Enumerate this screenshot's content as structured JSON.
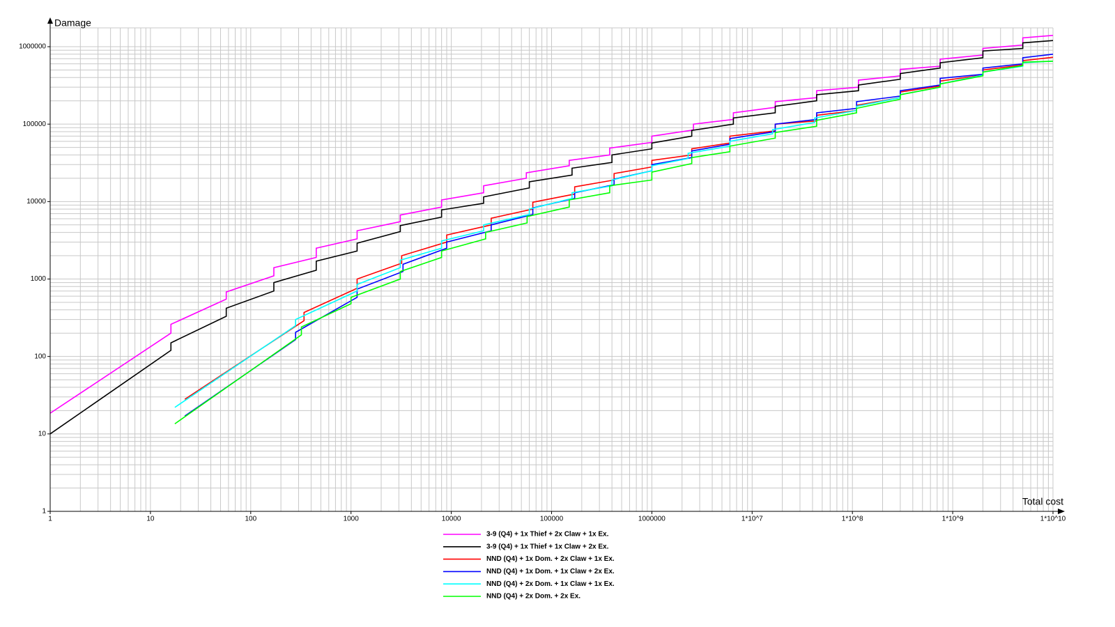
{
  "chart_data": {
    "type": "line",
    "x_label": "Total cost",
    "y_label": "Damage",
    "log_x": true,
    "log_y": true,
    "grid": true,
    "legend": "bottom",
    "xlim": [
      1,
      10000000000
    ],
    "ylim": [
      1,
      1750000
    ],
    "xticks": [
      1,
      10,
      100,
      1000,
      10000,
      100000,
      1000000,
      {
        "value": 10000000,
        "label": "1*10^7"
      },
      {
        "value": 100000000,
        "label": "1*10^8"
      },
      {
        "value": 1000000000,
        "label": "1*10^9"
      },
      {
        "value": 10000000000,
        "label": "1*10^10"
      }
    ],
    "yticks": [
      1,
      10,
      100,
      1000,
      10000,
      100000,
      1000000
    ],
    "series": [
      {
        "name": "3-9 (Q4) + 1x Thief + 2x Claw + 1x Ex.",
        "color": "#ff00ff",
        "x": [
          1,
          16,
          16,
          57,
          57,
          170,
          170,
          450,
          450,
          1150,
          1150,
          3100,
          3100,
          8000,
          8000,
          21000,
          21000,
          56000,
          56000,
          150000,
          150000,
          380000,
          380000,
          1000000,
          1000000,
          2600000,
          2600000,
          6500000,
          6500000,
          17000000,
          17000000,
          44000000,
          44000000,
          115000000,
          115000000,
          300000000,
          300000000,
          750000000,
          750000000,
          2000000000,
          2000000000,
          5000000000,
          5000000000,
          10000000000
        ],
        "values": [
          18.5,
          200,
          260,
          550,
          680,
          1100,
          1400,
          1900,
          2500,
          3300,
          4200,
          5500,
          6700,
          8500,
          10500,
          13000,
          16000,
          20000,
          23500,
          29000,
          34000,
          40000,
          49000,
          58000,
          70000,
          84000,
          100000,
          115000,
          140000,
          165000,
          195000,
          220000,
          270000,
          300000,
          370000,
          420000,
          510000,
          560000,
          690000,
          780000,
          950000,
          1050000,
          1300000,
          1400000
        ]
      },
      {
        "name": "3-9 (Q4) + 1x Thief + 1x Claw + 2x Ex.",
        "color": "#000000",
        "x": [
          1,
          16,
          16,
          57,
          57,
          170,
          170,
          450,
          450,
          1150,
          1150,
          3100,
          3100,
          8000,
          8000,
          21000,
          21000,
          60000,
          60000,
          160000,
          160000,
          400000,
          400000,
          1000000,
          1000000,
          2500000,
          2500000,
          6500000,
          6500000,
          17000000,
          17000000,
          44000000,
          44000000,
          115000000,
          115000000,
          300000000,
          300000000,
          750000000,
          750000000,
          2000000000,
          2000000000,
          5000000000,
          5000000000,
          10000000000
        ],
        "values": [
          10,
          120,
          150,
          330,
          420,
          700,
          900,
          1300,
          1700,
          2300,
          2900,
          4100,
          4900,
          6300,
          7800,
          9500,
          11500,
          15000,
          18000,
          22000,
          27000,
          32000,
          40000,
          48000,
          57000,
          70000,
          83000,
          100000,
          120000,
          140000,
          170000,
          200000,
          240000,
          270000,
          320000,
          380000,
          450000,
          530000,
          620000,
          720000,
          880000,
          950000,
          1120000,
          1200000
        ]
      },
      {
        "name": "NND (Q4) + 1x Dom. + 2x Claw + 1x Ex.",
        "color": "#ff0000",
        "x": [
          22,
          340,
          340,
          1150,
          1150,
          3200,
          3200,
          9000,
          9000,
          25000,
          25000,
          65000,
          65000,
          170000,
          170000,
          420000,
          420000,
          1000000,
          1000000,
          2500000,
          2500000,
          6000000,
          6000000,
          17000000,
          17000000,
          44000000,
          44000000,
          110000000,
          110000000,
          300000000,
          300000000,
          750000000,
          750000000,
          2000000000,
          2000000000,
          5000000000,
          5000000000,
          10000000000
        ],
        "values": [
          28,
          290,
          370,
          760,
          1000,
          1600,
          2000,
          3000,
          3700,
          5000,
          6100,
          8000,
          9800,
          12500,
          15500,
          19000,
          23000,
          28000,
          34000,
          40000,
          48000,
          57000,
          70000,
          82000,
          100000,
          110000,
          130000,
          150000,
          175000,
          220000,
          260000,
          310000,
          360000,
          430000,
          500000,
          580000,
          660000,
          730000
        ]
      },
      {
        "name": "NND (Q4) + 1x Dom. + 1x Claw + 2x Ex.",
        "color": "#0000ff",
        "x": [
          22,
          280,
          280,
          1150,
          1150,
          3300,
          3300,
          9000,
          9000,
          25000,
          25000,
          65000,
          65000,
          170000,
          170000,
          420000,
          420000,
          1000000,
          1000000,
          2500000,
          2500000,
          6000000,
          6000000,
          17000000,
          17000000,
          44000000,
          44000000,
          110000000,
          110000000,
          300000000,
          300000000,
          750000000,
          750000000,
          2000000000,
          2000000000,
          5000000000,
          5000000000,
          10000000000
        ],
        "values": [
          17,
          165,
          205,
          580,
          740,
          1250,
          1550,
          2500,
          3000,
          4200,
          5000,
          6800,
          8300,
          11000,
          13000,
          16500,
          19500,
          25000,
          30000,
          37000,
          45000,
          55000,
          65000,
          80000,
          100000,
          115000,
          140000,
          160000,
          195000,
          230000,
          270000,
          320000,
          390000,
          440000,
          530000,
          600000,
          720000,
          800000
        ]
      },
      {
        "name": "NND (Q4) + 2x Dom. + 1x Claw + 1x Ex.",
        "color": "#00ffff",
        "x": [
          17.5,
          280,
          280,
          1150,
          1150,
          3100,
          3100,
          8000,
          8000,
          21000,
          21000,
          60000,
          60000,
          160000,
          160000,
          400000,
          400000,
          1000000,
          1000000,
          2300000,
          2300000,
          6000000,
          6000000,
          16000000,
          16000000,
          42000000,
          42000000,
          110000000,
          110000000,
          300000000,
          300000000,
          750000000,
          750000000,
          2000000000,
          2000000000,
          5000000000,
          5000000000,
          10000000000
        ],
        "values": [
          22,
          250,
          300,
          700,
          850,
          1400,
          1750,
          2500,
          3100,
          4200,
          5000,
          6800,
          8000,
          11000,
          13000,
          16000,
          19000,
          25000,
          29000,
          36000,
          42000,
          52000,
          60000,
          75000,
          85000,
          105000,
          120000,
          150000,
          170000,
          220000,
          240000,
          300000,
          330000,
          430000,
          470000,
          560000,
          620000,
          650000
        ]
      },
      {
        "name": "NND (Q4) + 2x Dom. + 2x Ex.",
        "color": "#00ff00",
        "x": [
          17.5,
          320,
          320,
          1000,
          1000,
          3100,
          3100,
          8000,
          8000,
          22000,
          22000,
          57000,
          57000,
          150000,
          150000,
          380000,
          380000,
          1000000,
          1000000,
          2500000,
          2500000,
          6000000,
          6000000,
          17000000,
          17000000,
          44000000,
          44000000,
          110000000,
          110000000,
          300000000,
          300000000,
          750000000,
          750000000,
          2000000000,
          2000000000,
          5000000000,
          5000000000,
          10000000000
        ],
        "values": [
          13.5,
          190,
          240,
          480,
          580,
          1000,
          1250,
          1900,
          2300,
          3300,
          4000,
          5300,
          6400,
          8500,
          10500,
          13000,
          16000,
          19000,
          24000,
          31000,
          37000,
          44000,
          52000,
          66000,
          78000,
          94000,
          112000,
          140000,
          160000,
          210000,
          240000,
          300000,
          330000,
          420000,
          470000,
          570000,
          630000,
          650000
        ]
      }
    ]
  }
}
